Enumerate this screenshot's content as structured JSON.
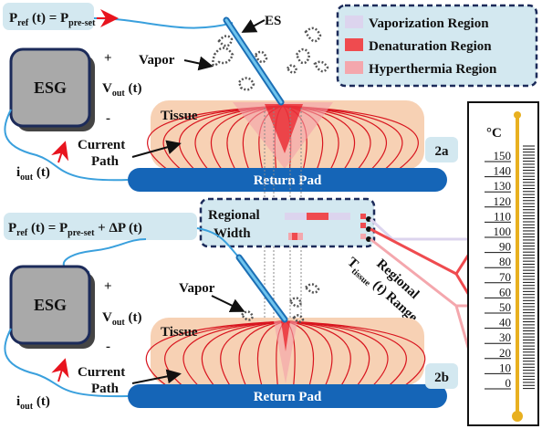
{
  "top": {
    "equation": [
      "P",
      "ref",
      " (t) = P",
      "pre-set"
    ],
    "esg": "ESG",
    "plus": "+",
    "vout": [
      "V",
      "out",
      " (t)"
    ],
    "minus": "-",
    "iout": [
      "i",
      "out",
      " (t)"
    ],
    "current_path": [
      "Current",
      "Path"
    ],
    "vapor": "Vapor",
    "es": "ES",
    "tissue": "Tissue",
    "return_pad": "Return Pad",
    "label": "2a"
  },
  "legend": [
    "Vaporization Region",
    "Denaturation Region",
    "Hyperthermia Region"
  ],
  "bottom": {
    "equation": [
      "P",
      "ref",
      " (t) = P",
      "pre-set",
      " + ΔP (t)"
    ],
    "esg": "ESG",
    "plus": "+",
    "vout": [
      "V",
      "out",
      " (t)"
    ],
    "minus": "-",
    "iout": [
      "i",
      "out",
      " (t)"
    ],
    "current_path": [
      "Current",
      "Path"
    ],
    "vapor": "Vapor",
    "tissue": "Tissue",
    "return_pad": "Return Pad",
    "label": "2b"
  },
  "regional_width": [
    "Regional",
    "Width"
  ],
  "regional_range": [
    "Regional",
    "T",
    "tissue",
    " (t) Range"
  ],
  "thermometer": {
    "unit": "°C",
    "ticks": [
      "150",
      "140",
      "130",
      "120",
      "110",
      "100",
      "90",
      "80",
      "70",
      "60",
      "50",
      "40",
      "30",
      "20",
      "10",
      "0"
    ]
  }
}
